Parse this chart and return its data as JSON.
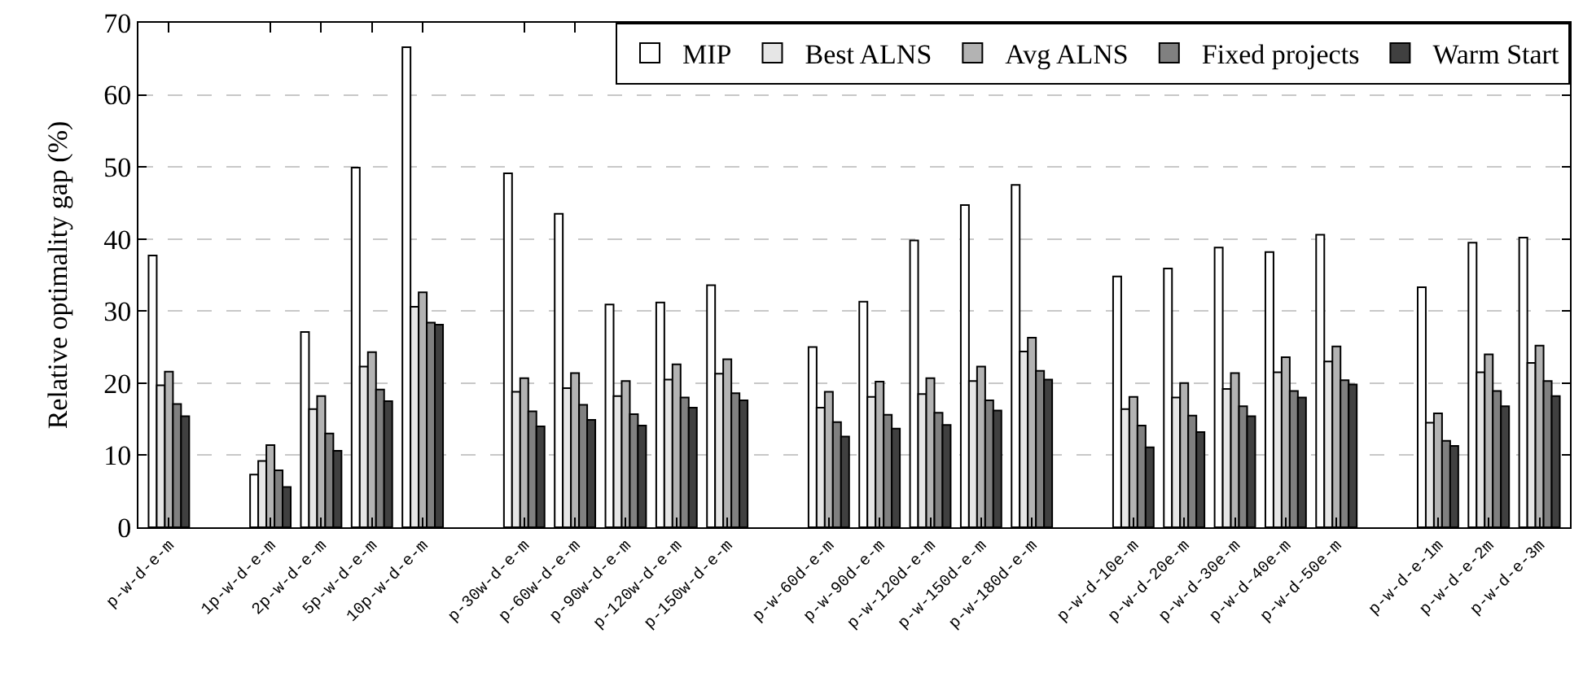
{
  "chart_data": {
    "type": "bar",
    "ylabel": "Relative optimality gap (%)",
    "categories": [
      "p-w-d-e-m",
      null,
      "1p-w-d-e-m",
      "2p-w-d-e-m",
      "5p-w-d-e-m",
      "10p-w-d-e-m",
      null,
      "p-30w-d-e-m",
      "p-60w-d-e-m",
      "p-90w-d-e-m",
      "p-120w-d-e-m",
      "p-150w-d-e-m",
      null,
      "p-w-60d-e-m",
      "p-w-90d-e-m",
      "p-w-120d-e-m",
      "p-w-150d-e-m",
      "p-w-180d-e-m",
      null,
      "p-w-d-10e-m",
      "p-w-d-20e-m",
      "p-w-d-30e-m",
      "p-w-d-40e-m",
      "p-w-d-50e-m",
      null,
      "p-w-d-e-1m",
      "p-w-d-e-2m",
      "p-w-d-e-3m"
    ],
    "series": [
      {
        "name": "MIP",
        "color": "#ffffff",
        "values": [
          37.7,
          null,
          7.3,
          27.1,
          49.9,
          66.6,
          null,
          49.1,
          43.5,
          30.9,
          31.2,
          33.6,
          null,
          25.0,
          31.3,
          39.8,
          44.7,
          47.5,
          null,
          34.8,
          35.9,
          38.8,
          38.2,
          40.6,
          null,
          33.3,
          39.5,
          40.2
        ]
      },
      {
        "name": "Best ALNS",
        "color": "#e6e6e6",
        "values": [
          19.7,
          null,
          9.2,
          16.4,
          22.3,
          30.6,
          null,
          18.8,
          19.3,
          18.2,
          20.5,
          21.3,
          null,
          16.6,
          18.1,
          18.5,
          20.3,
          24.4,
          null,
          16.4,
          18.0,
          19.2,
          21.5,
          23.0,
          null,
          14.5,
          21.5,
          22.8
        ]
      },
      {
        "name": "Avg ALNS",
        "color": "#b3b3b3",
        "values": [
          21.6,
          null,
          11.4,
          18.2,
          24.3,
          32.6,
          null,
          20.7,
          21.4,
          20.3,
          22.6,
          23.3,
          null,
          18.8,
          20.2,
          20.7,
          22.3,
          26.3,
          null,
          18.1,
          20.0,
          21.4,
          23.6,
          25.1,
          null,
          15.8,
          24.0,
          25.2
        ]
      },
      {
        "name": "Fixed projects",
        "color": "#808080",
        "values": [
          17.1,
          null,
          7.9,
          13.0,
          19.1,
          28.4,
          null,
          16.1,
          17.0,
          15.7,
          18.0,
          18.6,
          null,
          14.6,
          15.6,
          15.9,
          17.6,
          21.7,
          null,
          14.1,
          15.5,
          16.8,
          18.9,
          20.4,
          null,
          12.0,
          18.9,
          20.3
        ]
      },
      {
        "name": "Warm Start",
        "color": "#404040",
        "values": [
          15.4,
          null,
          5.6,
          10.6,
          17.5,
          28.1,
          null,
          14.0,
          14.9,
          14.1,
          16.6,
          17.6,
          null,
          12.6,
          13.7,
          14.2,
          16.2,
          20.5,
          null,
          11.1,
          13.2,
          15.4,
          18.0,
          19.8,
          null,
          11.3,
          16.8,
          18.2
        ]
      }
    ],
    "ylim": [
      0,
      70
    ],
    "yticks": [
      0,
      10,
      20,
      30,
      40,
      50,
      60,
      70
    ],
    "grid": "y",
    "legend": "top right"
  }
}
